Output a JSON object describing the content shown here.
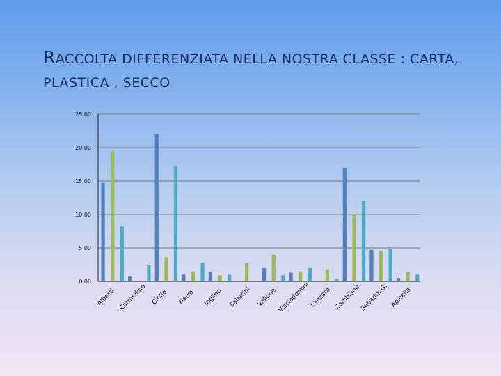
{
  "slide": {
    "title_first_letter": "R",
    "title_rest": "ACCOLTA  DIFFERENZIATA NELLA  NOSTRA CLASSE  : CARTA, PLASTICA , SECCO"
  },
  "colors": {
    "series1": "#4f81bd",
    "series2": "#9bbb59",
    "series3": "#4bacc6",
    "gridline": "#8a8a8a",
    "axis": "#222222"
  },
  "chart_data": {
    "type": "bar",
    "categories": [
      "Alberti",
      "Carmellino",
      "Cirillo",
      "Fierro",
      "Inglino",
      "Sabatini",
      "Vallone",
      "Visciadomini",
      "Lanzara",
      "Zambiano",
      "Sabatini G.",
      "Apicella"
    ],
    "series": [
      {
        "values": [
          14.7,
          0.8,
          22.0,
          1.0,
          1.4,
          0.0,
          2.0,
          1.3,
          0.0,
          17.0,
          4.7,
          0.5
        ]
      },
      {
        "values": [
          19.5,
          0.0,
          3.6,
          1.5,
          0.9,
          2.7,
          4.0,
          1.5,
          1.7,
          10.0,
          4.5,
          1.4
        ]
      },
      {
        "values": [
          8.2,
          2.4,
          17.2,
          2.8,
          1.0,
          0.0,
          0.9,
          2.0,
          0.4,
          12.0,
          4.8,
          1.0
        ]
      }
    ],
    "ylim": [
      0,
      25
    ],
    "yticks": [
      "0.00",
      "5.00",
      "10.00",
      "15.00",
      "20.00",
      "25.00"
    ],
    "grid": true,
    "legend": "none"
  }
}
